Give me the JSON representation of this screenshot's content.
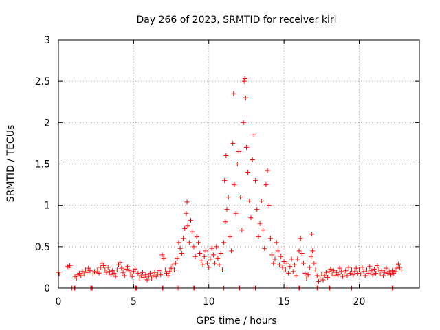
{
  "chart_data": {
    "type": "scatter",
    "title": "Day 266 of 2023, SRMTID for receiver kiri",
    "xlabel": "GPS time / hours",
    "ylabel": "SRMTID / TECUs",
    "xlim": [
      0,
      24
    ],
    "ylim": [
      0,
      3
    ],
    "xticks": [
      0,
      5,
      10,
      15,
      20
    ],
    "yticks": [
      0,
      0.5,
      1,
      1.5,
      2,
      2.5,
      3
    ],
    "xtick_labels": [
      "0",
      "5",
      "10",
      "15",
      "20"
    ],
    "ytick_labels": [
      "0",
      "0.5",
      "1",
      "1.5",
      "2",
      "2.5",
      "3"
    ],
    "grid": true,
    "marker": "+",
    "color": "#ff0000",
    "series": [
      {
        "name": "kiri",
        "points": [
          [
            0.0,
            0.19
          ],
          [
            0.05,
            0.17
          ],
          [
            0.6,
            0.26
          ],
          [
            0.7,
            0.25
          ],
          [
            0.75,
            0.27
          ],
          [
            1.1,
            0.14
          ],
          [
            1.2,
            0.12
          ],
          [
            1.3,
            0.16
          ],
          [
            1.4,
            0.18
          ],
          [
            1.5,
            0.15
          ],
          [
            1.6,
            0.2
          ],
          [
            1.7,
            0.17
          ],
          [
            1.8,
            0.22
          ],
          [
            1.9,
            0.19
          ],
          [
            2.0,
            0.24
          ],
          [
            2.1,
            0.21
          ],
          [
            2.3,
            0.17
          ],
          [
            2.4,
            0.2
          ],
          [
            2.5,
            0.19
          ],
          [
            2.6,
            0.22
          ],
          [
            2.7,
            0.18
          ],
          [
            2.8,
            0.25
          ],
          [
            2.9,
            0.3
          ],
          [
            3.0,
            0.27
          ],
          [
            3.1,
            0.22
          ],
          [
            3.2,
            0.19
          ],
          [
            3.3,
            0.25
          ],
          [
            3.4,
            0.2
          ],
          [
            3.5,
            0.16
          ],
          [
            3.6,
            0.21
          ],
          [
            3.7,
            0.18
          ],
          [
            3.8,
            0.14
          ],
          [
            3.9,
            0.22
          ],
          [
            4.0,
            0.28
          ],
          [
            4.1,
            0.31
          ],
          [
            4.2,
            0.24
          ],
          [
            4.3,
            0.19
          ],
          [
            4.4,
            0.15
          ],
          [
            4.5,
            0.23
          ],
          [
            4.6,
            0.26
          ],
          [
            4.7,
            0.21
          ],
          [
            4.8,
            0.17
          ],
          [
            4.9,
            0.14
          ],
          [
            5.0,
            0.2
          ],
          [
            5.1,
            0.23
          ],
          [
            5.3,
            0.18
          ],
          [
            5.4,
            0.12
          ],
          [
            5.5,
            0.15
          ],
          [
            5.6,
            0.19
          ],
          [
            5.7,
            0.13
          ],
          [
            5.8,
            0.16
          ],
          [
            5.9,
            0.1
          ],
          [
            6.0,
            0.14
          ],
          [
            6.1,
            0.18
          ],
          [
            6.2,
            0.12
          ],
          [
            6.3,
            0.15
          ],
          [
            6.4,
            0.19
          ],
          [
            6.5,
            0.14
          ],
          [
            6.6,
            0.17
          ],
          [
            6.7,
            0.21
          ],
          [
            6.8,
            0.16
          ],
          [
            6.9,
            0.4
          ],
          [
            7.0,
            0.36
          ],
          [
            7.1,
            0.22
          ],
          [
            7.2,
            0.18
          ],
          [
            7.3,
            0.15
          ],
          [
            7.4,
            0.2
          ],
          [
            7.5,
            0.24
          ],
          [
            7.6,
            0.28
          ],
          [
            7.7,
            0.22
          ],
          [
            7.8,
            0.3
          ],
          [
            7.9,
            0.36
          ],
          [
            8.0,
            0.55
          ],
          [
            8.1,
            0.48
          ],
          [
            8.2,
            0.42
          ],
          [
            8.3,
            0.6
          ],
          [
            8.4,
            0.72
          ],
          [
            8.5,
            0.9
          ],
          [
            8.55,
            1.04
          ],
          [
            8.6,
            0.75
          ],
          [
            8.7,
            0.55
          ],
          [
            8.8,
            0.82
          ],
          [
            8.9,
            0.68
          ],
          [
            9.0,
            0.5
          ],
          [
            9.1,
            0.38
          ],
          [
            9.2,
            0.62
          ],
          [
            9.3,
            0.55
          ],
          [
            9.4,
            0.42
          ],
          [
            9.5,
            0.33
          ],
          [
            9.6,
            0.28
          ],
          [
            9.7,
            0.38
          ],
          [
            9.8,
            0.45
          ],
          [
            9.9,
            0.3
          ],
          [
            10.0,
            0.25
          ],
          [
            10.1,
            0.35
          ],
          [
            10.2,
            0.48
          ],
          [
            10.3,
            0.4
          ],
          [
            10.4,
            0.3
          ],
          [
            10.5,
            0.5
          ],
          [
            10.6,
            0.36
          ],
          [
            10.7,
            0.28
          ],
          [
            10.8,
            0.42
          ],
          [
            10.9,
            0.22
          ],
          [
            11.0,
            0.55
          ],
          [
            11.05,
            1.3
          ],
          [
            11.1,
            0.8
          ],
          [
            11.15,
            1.6
          ],
          [
            11.2,
            0.95
          ],
          [
            11.3,
            1.1
          ],
          [
            11.4,
            0.62
          ],
          [
            11.5,
            0.45
          ],
          [
            11.6,
            1.75
          ],
          [
            11.65,
            2.35
          ],
          [
            11.7,
            1.25
          ],
          [
            11.8,
            0.9
          ],
          [
            11.9,
            1.5
          ],
          [
            12.0,
            1.65
          ],
          [
            12.1,
            1.1
          ],
          [
            12.2,
            0.7
          ],
          [
            12.3,
            2.0
          ],
          [
            12.35,
            2.5
          ],
          [
            12.4,
            2.53
          ],
          [
            12.45,
            2.3
          ],
          [
            12.5,
            1.7
          ],
          [
            12.6,
            1.4
          ],
          [
            12.7,
            1.05
          ],
          [
            12.8,
            0.85
          ],
          [
            12.9,
            1.55
          ],
          [
            13.0,
            1.85
          ],
          [
            13.1,
            1.3
          ],
          [
            13.2,
            0.95
          ],
          [
            13.3,
            0.62
          ],
          [
            13.4,
            0.78
          ],
          [
            13.5,
            1.05
          ],
          [
            13.6,
            0.7
          ],
          [
            13.7,
            0.48
          ],
          [
            13.8,
            1.25
          ],
          [
            13.9,
            1.42
          ],
          [
            14.0,
            1.0
          ],
          [
            14.1,
            0.6
          ],
          [
            14.2,
            0.4
          ],
          [
            14.3,
            0.3
          ],
          [
            14.4,
            0.35
          ],
          [
            14.5,
            0.55
          ],
          [
            14.6,
            0.45
          ],
          [
            14.7,
            0.28
          ],
          [
            14.8,
            0.38
          ],
          [
            14.9,
            0.25
          ],
          [
            15.0,
            0.32
          ],
          [
            15.1,
            0.22
          ],
          [
            15.2,
            0.3
          ],
          [
            15.3,
            0.18
          ],
          [
            15.4,
            0.26
          ],
          [
            15.5,
            0.35
          ],
          [
            15.6,
            0.2
          ],
          [
            15.7,
            0.28
          ],
          [
            15.8,
            0.15
          ],
          [
            15.9,
            0.35
          ],
          [
            16.0,
            0.45
          ],
          [
            16.1,
            0.6
          ],
          [
            16.2,
            0.42
          ],
          [
            16.3,
            0.3
          ],
          [
            16.4,
            0.18
          ],
          [
            16.5,
            0.12
          ],
          [
            16.6,
            0.16
          ],
          [
            16.7,
            0.25
          ],
          [
            16.8,
            0.38
          ],
          [
            16.85,
            0.65
          ],
          [
            16.9,
            0.45
          ],
          [
            17.0,
            0.3
          ],
          [
            17.1,
            0.22
          ],
          [
            17.2,
            0.15
          ],
          [
            17.3,
            0.08
          ],
          [
            17.4,
            0.12
          ],
          [
            17.5,
            0.17
          ],
          [
            17.6,
            0.1
          ],
          [
            17.7,
            0.15
          ],
          [
            17.8,
            0.19
          ],
          [
            17.9,
            0.13
          ],
          [
            18.0,
            0.2
          ],
          [
            18.1,
            0.23
          ],
          [
            18.2,
            0.17
          ],
          [
            18.3,
            0.21
          ],
          [
            18.4,
            0.15
          ],
          [
            18.5,
            0.19
          ],
          [
            18.6,
            0.16
          ],
          [
            18.7,
            0.24
          ],
          [
            18.8,
            0.2
          ],
          [
            18.9,
            0.14
          ],
          [
            19.0,
            0.17
          ],
          [
            19.1,
            0.21
          ],
          [
            19.2,
            0.15
          ],
          [
            19.3,
            0.25
          ],
          [
            19.4,
            0.18
          ],
          [
            19.5,
            0.22
          ],
          [
            19.6,
            0.16
          ],
          [
            19.7,
            0.2
          ],
          [
            19.8,
            0.24
          ],
          [
            19.9,
            0.18
          ],
          [
            20.0,
            0.22
          ],
          [
            20.1,
            0.17
          ],
          [
            20.2,
            0.25
          ],
          [
            20.3,
            0.2
          ],
          [
            20.4,
            0.15
          ],
          [
            20.5,
            0.22
          ],
          [
            20.6,
            0.18
          ],
          [
            20.7,
            0.26
          ],
          [
            20.8,
            0.21
          ],
          [
            20.9,
            0.16
          ],
          [
            21.0,
            0.23
          ],
          [
            21.1,
            0.18
          ],
          [
            21.2,
            0.27
          ],
          [
            21.3,
            0.22
          ],
          [
            21.4,
            0.17
          ],
          [
            21.5,
            0.21
          ],
          [
            21.6,
            0.15
          ],
          [
            21.7,
            0.19
          ],
          [
            21.8,
            0.24
          ],
          [
            21.9,
            0.18
          ],
          [
            22.0,
            0.2
          ],
          [
            22.1,
            0.16
          ],
          [
            22.2,
            0.21
          ],
          [
            22.3,
            0.18
          ],
          [
            22.4,
            0.2
          ],
          [
            22.5,
            0.24
          ],
          [
            22.6,
            0.29
          ],
          [
            22.7,
            0.25
          ],
          [
            22.8,
            0.22
          ],
          [
            0.9,
            0.0
          ],
          [
            1.05,
            0.0
          ],
          [
            1.1,
            0.0
          ],
          [
            2.15,
            0.0
          ],
          [
            2.2,
            0.0
          ],
          [
            2.25,
            0.0
          ],
          [
            5.1,
            0.0
          ],
          [
            5.15,
            0.0
          ],
          [
            5.2,
            0.0
          ],
          [
            6.9,
            0.0
          ],
          [
            6.95,
            0.0
          ],
          [
            7.9,
            0.0
          ],
          [
            8.0,
            0.0
          ],
          [
            9.0,
            0.0
          ],
          [
            9.05,
            0.0
          ],
          [
            11.0,
            0.0
          ],
          [
            12.0,
            0.0
          ],
          [
            12.05,
            0.0
          ],
          [
            13.0,
            0.0
          ],
          [
            13.1,
            0.0
          ],
          [
            15.2,
            0.0
          ],
          [
            16.0,
            0.0
          ],
          [
            16.05,
            0.0
          ],
          [
            17.2,
            0.0
          ],
          [
            17.25,
            0.0
          ],
          [
            18.0,
            0.0
          ],
          [
            18.05,
            0.0
          ],
          [
            19.5,
            0.0
          ],
          [
            22.2,
            0.0
          ],
          [
            22.25,
            0.0
          ]
        ]
      }
    ]
  }
}
